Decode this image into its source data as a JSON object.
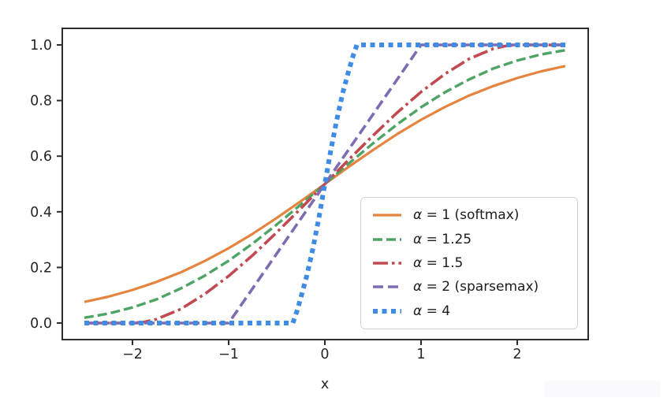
{
  "xaxis_label": "x",
  "chart_data": {
    "type": "line",
    "title": "",
    "xlabel": "x",
    "ylabel": "",
    "xlim": [
      -2.73,
      2.73
    ],
    "ylim": [
      -0.06,
      1.06
    ],
    "grid": false,
    "legend_position": "lower right inside",
    "axis_color": "#2d2d2d",
    "tick_label_color": "#262626",
    "legend_border_color": "#d2d2d2",
    "x_ticks": [
      -2,
      -1,
      0,
      1,
      2
    ],
    "x_tick_labels": [
      "−2",
      "−1",
      "0",
      "1",
      "2"
    ],
    "y_ticks": [
      0,
      0.2,
      0.4,
      0.6,
      0.8,
      1.0
    ],
    "y_tick_labels": [
      "0.0",
      "0.2",
      "0.4",
      "0.6",
      "0.8",
      "1.0"
    ],
    "series": [
      {
        "name": "alpha-1-softmax",
        "label_symbol": "α",
        "label_rest": " = 1 (softmax)",
        "color": "#e5843f",
        "style": "solid",
        "width": 3.2,
        "dash": null,
        "points": [
          [
            -2.5,
            0.076
          ],
          [
            -2.25,
            0.095
          ],
          [
            -2,
            0.119
          ],
          [
            -1.75,
            0.148
          ],
          [
            -1.5,
            0.182
          ],
          [
            -1.25,
            0.223
          ],
          [
            -1,
            0.269
          ],
          [
            -0.75,
            0.321
          ],
          [
            -0.5,
            0.378
          ],
          [
            -0.25,
            0.438
          ],
          [
            0,
            0.5
          ],
          [
            0.25,
            0.562
          ],
          [
            0.5,
            0.622
          ],
          [
            0.75,
            0.679
          ],
          [
            1,
            0.731
          ],
          [
            1.25,
            0.777
          ],
          [
            1.5,
            0.818
          ],
          [
            1.75,
            0.852
          ],
          [
            2,
            0.881
          ],
          [
            2.25,
            0.905
          ],
          [
            2.5,
            0.924
          ]
        ]
      },
      {
        "name": "alpha-1.25",
        "label_symbol": "α",
        "label_rest": " = 1.25",
        "color": "#4ea465",
        "style": "dashed",
        "width": 3.4,
        "dash": "12 5",
        "points": [
          [
            -2.5,
            0.019
          ],
          [
            -2.25,
            0.034
          ],
          [
            -2,
            0.056
          ],
          [
            -1.75,
            0.085
          ],
          [
            -1.5,
            0.124
          ],
          [
            -1.25,
            0.17
          ],
          [
            -1,
            0.224
          ],
          [
            -0.75,
            0.286
          ],
          [
            -0.5,
            0.354
          ],
          [
            -0.25,
            0.426
          ],
          [
            0,
            0.5
          ],
          [
            0.25,
            0.574
          ],
          [
            0.5,
            0.646
          ],
          [
            0.75,
            0.714
          ],
          [
            1,
            0.776
          ],
          [
            1.25,
            0.83
          ],
          [
            1.5,
            0.876
          ],
          [
            1.75,
            0.915
          ],
          [
            2,
            0.944
          ],
          [
            2.25,
            0.966
          ],
          [
            2.5,
            0.981
          ]
        ]
      },
      {
        "name": "alpha-1.5",
        "label_symbol": "α",
        "label_rest": " = 1.5",
        "color": "#c04a50",
        "style": "dashdot",
        "width": 3.6,
        "dash": "19 5 3.5 5",
        "points": [
          [
            -2.5,
            0
          ],
          [
            -2,
            0
          ],
          [
            -1.875,
            0.004
          ],
          [
            -1.75,
            0.014
          ],
          [
            -1.5,
            0.05
          ],
          [
            -1.25,
            0.104
          ],
          [
            -1,
            0.169
          ],
          [
            -0.75,
            0.244
          ],
          [
            -0.5,
            0.326
          ],
          [
            -0.25,
            0.412
          ],
          [
            0,
            0.5
          ],
          [
            0.25,
            0.588
          ],
          [
            0.5,
            0.674
          ],
          [
            0.75,
            0.756
          ],
          [
            1,
            0.831
          ],
          [
            1.25,
            0.896
          ],
          [
            1.5,
            0.95
          ],
          [
            1.75,
            0.986
          ],
          [
            1.875,
            0.996
          ],
          [
            2,
            1
          ],
          [
            2.5,
            1
          ]
        ]
      },
      {
        "name": "alpha-2-sparsemax",
        "label_symbol": "α",
        "label_rest": " = 2 (sparsemax)",
        "color": "#7d6cb3",
        "style": "dashed",
        "width": 3.6,
        "dash": "13 6",
        "points": [
          [
            -2.5,
            0
          ],
          [
            -1,
            0
          ],
          [
            -0.5,
            0.25
          ],
          [
            0,
            0.5
          ],
          [
            0.5,
            0.75
          ],
          [
            1,
            1
          ],
          [
            2.5,
            1
          ]
        ]
      },
      {
        "name": "alpha-4",
        "label_symbol": "α",
        "label_rest": " = 4",
        "color": "#3e8ce4",
        "style": "dotted",
        "width": 6,
        "dash": "6 5.5",
        "points": [
          [
            -2.5,
            0
          ],
          [
            -0.333,
            0
          ],
          [
            -0.3125,
            0.021
          ],
          [
            -0.292,
            0.041
          ],
          [
            -0.25,
            0.091
          ],
          [
            -0.1875,
            0.17
          ],
          [
            -0.125,
            0.267
          ],
          [
            -0.0625,
            0.378
          ],
          [
            0,
            0.5
          ],
          [
            0.0625,
            0.622
          ],
          [
            0.125,
            0.733
          ],
          [
            0.1875,
            0.83
          ],
          [
            0.25,
            0.909
          ],
          [
            0.292,
            0.959
          ],
          [
            0.3125,
            0.979
          ],
          [
            0.333,
            1
          ],
          [
            2.5,
            1
          ]
        ]
      }
    ]
  }
}
